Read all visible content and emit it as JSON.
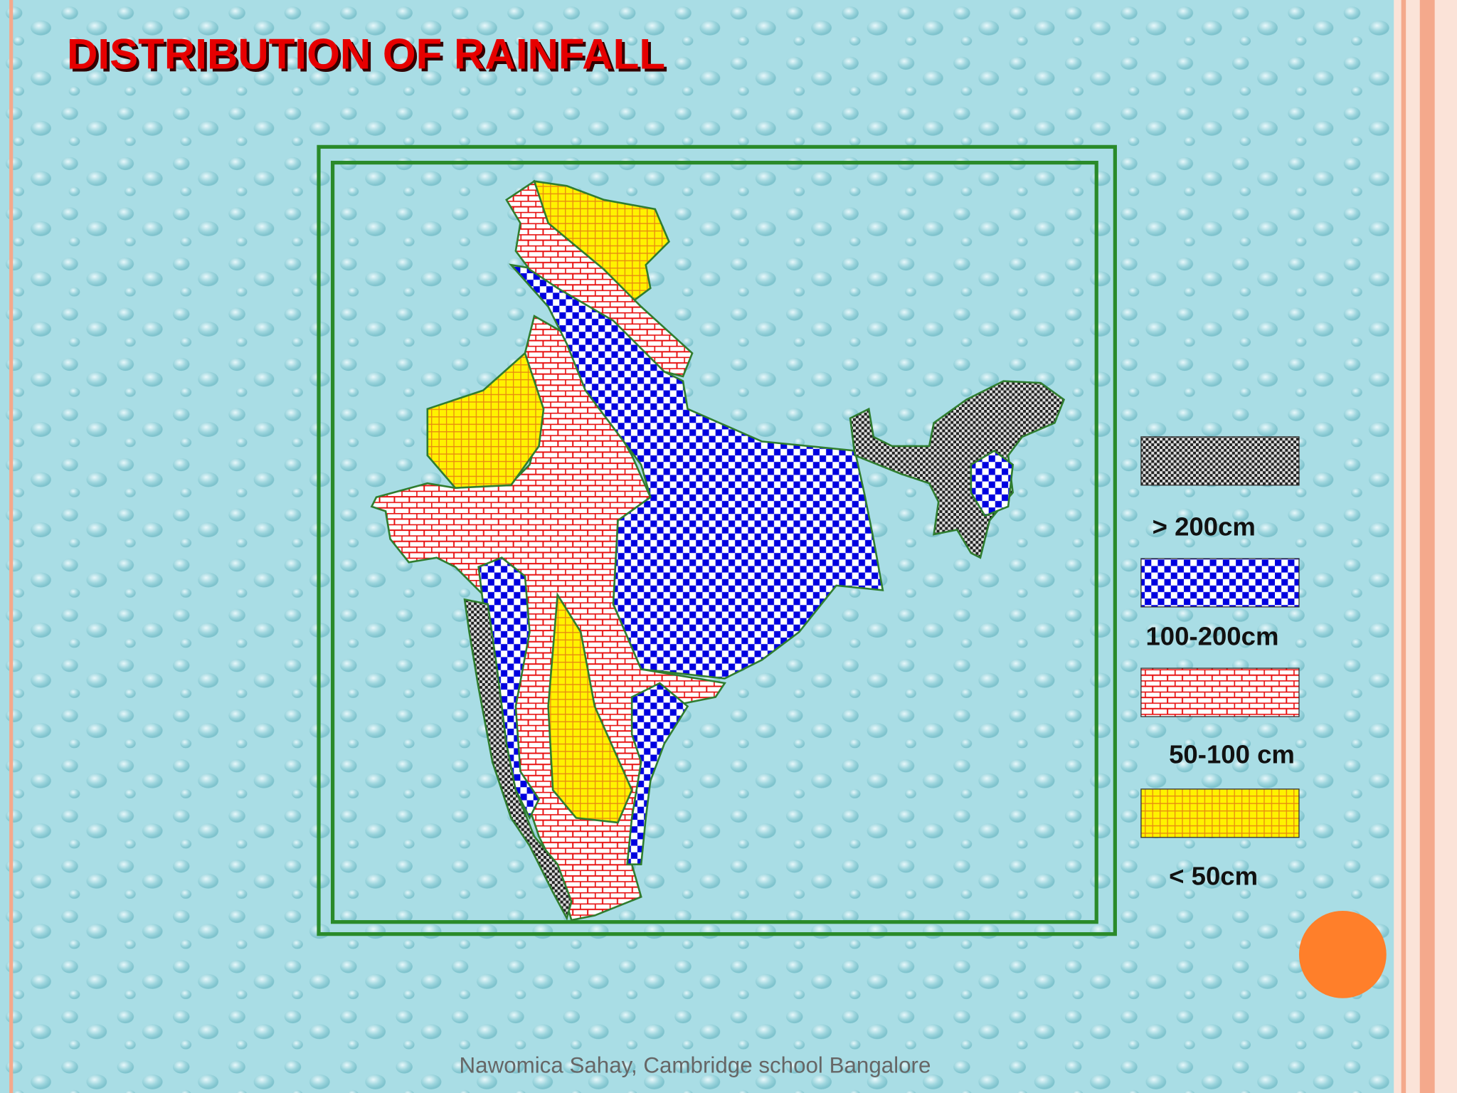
{
  "title": "DISTRIBUTION OF RAINFALL",
  "legend": [
    {
      "label": "> 200cm"
    },
    {
      "label": "100-200cm"
    },
    {
      "label": "50-100 cm"
    },
    {
      "label": "< 50cm"
    }
  ],
  "footer": "Nawomica Sahay, Cambridge school Bangalore"
}
